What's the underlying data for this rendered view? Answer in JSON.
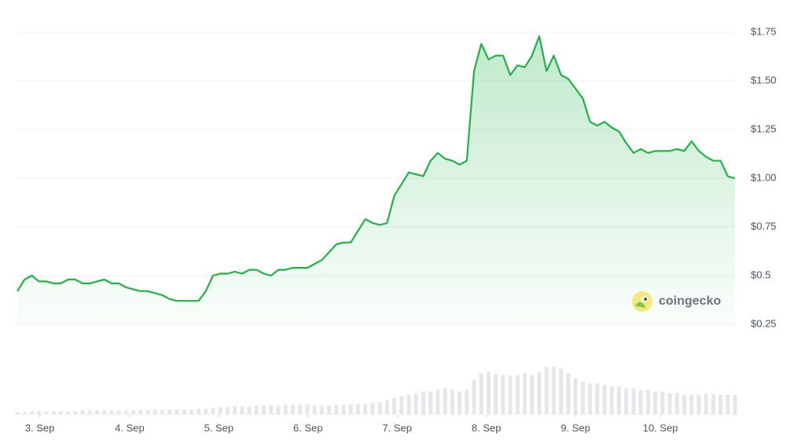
{
  "chart_data": {
    "type": "area",
    "series": [
      {
        "color": "#1fb245",
        "values": [
          0.42,
          0.48,
          0.5,
          0.47,
          0.47,
          0.46,
          0.46,
          0.48,
          0.48,
          0.46,
          0.46,
          0.47,
          0.48,
          0.46,
          0.46,
          0.44,
          0.43,
          0.42,
          0.42,
          0.41,
          0.4,
          0.38,
          0.37,
          0.37,
          0.37,
          0.37,
          0.42,
          0.5,
          0.51,
          0.51,
          0.52,
          0.51,
          0.53,
          0.53,
          0.51,
          0.5,
          0.53,
          0.53,
          0.54,
          0.54,
          0.54,
          0.56,
          0.58,
          0.62,
          0.66,
          0.67,
          0.67,
          0.73,
          0.79,
          0.77,
          0.76,
          0.77,
          0.91,
          0.97,
          1.03,
          1.02,
          1.01,
          1.09,
          1.13,
          1.1,
          1.09,
          1.07,
          1.09,
          1.55,
          1.69,
          1.61,
          1.63,
          1.63,
          1.53,
          1.58,
          1.57,
          1.63,
          1.73,
          1.55,
          1.63,
          1.53,
          1.51,
          1.46,
          1.41,
          1.29,
          1.27,
          1.29,
          1.26,
          1.24,
          1.18,
          1.13,
          1.15,
          1.13,
          1.14,
          1.14,
          1.14,
          1.15,
          1.14,
          1.19,
          1.14,
          1.11,
          1.09,
          1.09,
          1.01,
          1.0
        ]
      }
    ],
    "volume": [
      3,
      3,
      4,
      4,
      4,
      4,
      4,
      4,
      4,
      5,
      5,
      5,
      5,
      5,
      5,
      5,
      5,
      5,
      5,
      6,
      6,
      6,
      6,
      6,
      6,
      7,
      7,
      8,
      9,
      9,
      10,
      10,
      10,
      11,
      11,
      11,
      11,
      12,
      12,
      12,
      12,
      11,
      11,
      11,
      12,
      12,
      12,
      13,
      13,
      14,
      15,
      17,
      20,
      22,
      24,
      26,
      28,
      28,
      30,
      32,
      30,
      28,
      30,
      42,
      50,
      52,
      50,
      48,
      48,
      48,
      50,
      48,
      52,
      58,
      58,
      56,
      50,
      44,
      40,
      38,
      38,
      36,
      34,
      34,
      32,
      32,
      30,
      30,
      28,
      28,
      26,
      26,
      24,
      24,
      24,
      26,
      25,
      24,
      24,
      24
    ],
    "xlim": [
      0,
      99
    ],
    "xticks": [
      {
        "value": 3.1,
        "label": "3. Sep"
      },
      {
        "value": 15.5,
        "label": "4. Sep"
      },
      {
        "value": 27.8,
        "label": "5. Sep"
      },
      {
        "value": 40.1,
        "label": "6. Sep"
      },
      {
        "value": 52.4,
        "label": "7. Sep"
      },
      {
        "value": 64.7,
        "label": "8. Sep"
      },
      {
        "value": 77.0,
        "label": "9. Sep"
      },
      {
        "value": 88.7,
        "label": "10. Sep"
      }
    ],
    "ylim": [
      0.25,
      1.75
    ],
    "yticks": [
      {
        "value": 1.75,
        "label": "$1.75"
      },
      {
        "value": 1.5,
        "label": "$1.50"
      },
      {
        "value": 1.25,
        "label": "$1.25"
      },
      {
        "value": 1.0,
        "label": "$1.00"
      },
      {
        "value": 0.75,
        "label": "$0.75"
      },
      {
        "value": 0.5,
        "label": "$0.5"
      },
      {
        "value": 0.25,
        "label": "$0.25"
      }
    ],
    "grid": true
  },
  "watermark": "coingecko"
}
